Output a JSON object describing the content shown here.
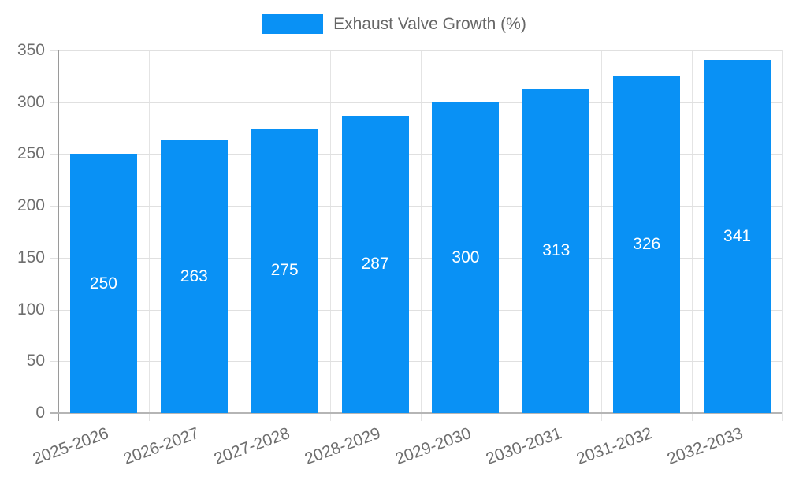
{
  "chart_data": {
    "type": "bar",
    "title": "",
    "legend": {
      "position": "top",
      "label": "Exhaust Valve Growth (%)"
    },
    "categories": [
      "2025-2026",
      "2026-2027",
      "2027-2028",
      "2028-2029",
      "2029-2030",
      "2030-2031",
      "2031-2032",
      "2032-2033"
    ],
    "series": [
      {
        "name": "Exhaust Valve Growth (%)",
        "values": [
          250,
          263,
          275,
          287,
          300,
          313,
          326,
          341
        ]
      }
    ],
    "value_labels": [
      "250",
      "263",
      "275",
      "287",
      "300",
      "313",
      "326",
      "341"
    ],
    "xlabel": "",
    "ylabel": "",
    "ylim": [
      0,
      350
    ],
    "yticks": [
      0,
      50,
      100,
      150,
      200,
      250,
      300,
      350
    ],
    "grid": true,
    "colors": {
      "bar": "#0991f5",
      "value_label": "#ffffff",
      "axis_text": "#6e6e6e",
      "legend_text": "#666666",
      "gridline": "#e0e0e0",
      "axis_line": "#9a9a9a"
    }
  }
}
